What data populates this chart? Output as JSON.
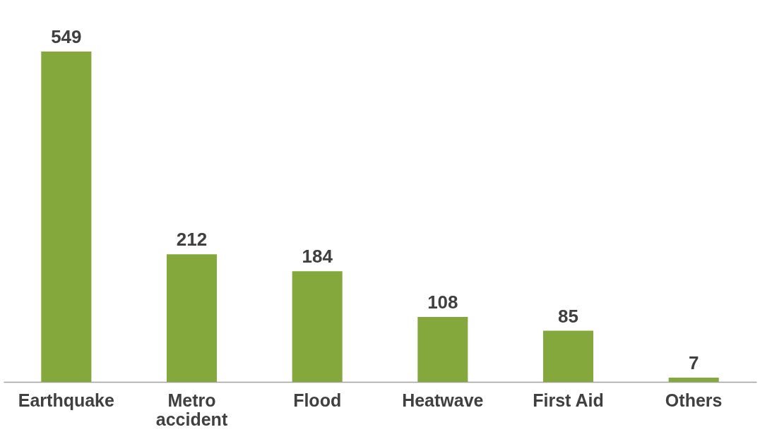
{
  "chart_data": {
    "type": "bar",
    "categories": [
      "Earthquake",
      "Metro accident",
      "Flood",
      "Heatwave",
      "First Aid",
      "Others"
    ],
    "values": [
      549,
      212,
      184,
      108,
      85,
      7
    ],
    "color": "#84a83c",
    "data_labels": true
  }
}
